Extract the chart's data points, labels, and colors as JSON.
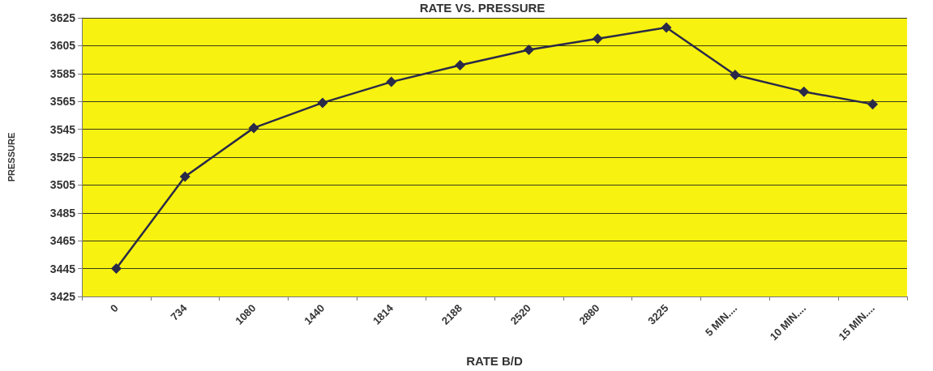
{
  "chart_data": {
    "type": "line",
    "title": "RATE VS. PRESSURE",
    "xlabel": "RATE B/D",
    "ylabel": "PRESSURE",
    "categories": [
      "0",
      "734",
      "1080",
      "1440",
      "1814",
      "2188",
      "2520",
      "2880",
      "3225",
      "5 MIN....",
      "10 MIN....",
      "15 MIN...."
    ],
    "series": [
      {
        "color": "#2a2a48",
        "values": [
          3445,
          3511,
          3546,
          3564,
          3579,
          3591,
          3602,
          3610,
          3618,
          3584,
          3572,
          3563
        ]
      }
    ],
    "ylim": [
      3425,
      3625
    ],
    "yticks": [
      3425,
      3445,
      3465,
      3485,
      3505,
      3525,
      3545,
      3565,
      3585,
      3605,
      3625
    ],
    "grid": "y",
    "marker": "diamond"
  }
}
